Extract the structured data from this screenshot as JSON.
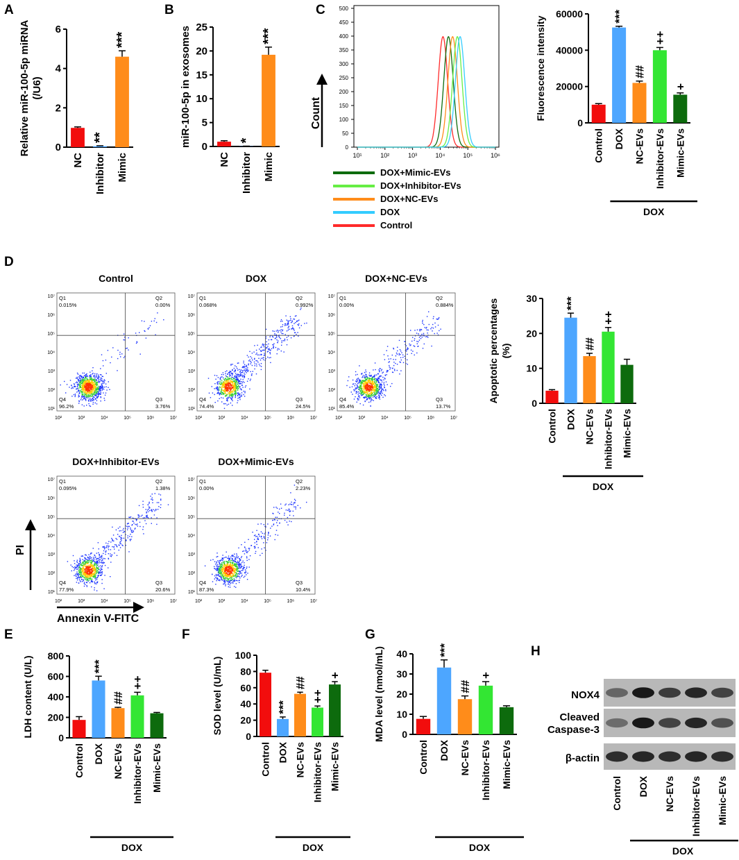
{
  "colors": {
    "red": "#f20d0d",
    "blue": "#4da6ff",
    "orange": "#ff8c1a",
    "green": "#33e633",
    "darkgreen": "#0d6b0d",
    "cyan": "#33ccff",
    "lightgreen": "#66ee44"
  },
  "panel_labels": [
    "A",
    "B",
    "C",
    "D",
    "E",
    "F",
    "G",
    "H"
  ],
  "chart_data": [
    {
      "panel": "A",
      "type": "bar",
      "ylabel": "Relative miR-100-5p miRNA (/U6)",
      "categories": [
        "NC",
        "Inhibitor",
        "Mimic"
      ],
      "values": [
        0.98,
        0.05,
        4.6
      ],
      "errors": [
        0.05,
        0.02,
        0.3
      ],
      "colors": [
        "#f20d0d",
        "#4da6ff",
        "#ff8c1a"
      ],
      "annotations": [
        "",
        "**",
        "***"
      ],
      "ylim": [
        0,
        6
      ],
      "yticks": [
        0,
        2,
        4,
        6
      ]
    },
    {
      "panel": "B",
      "type": "bar",
      "ylabel": "miR-100-5p in exosomes",
      "categories": [
        "NC",
        "Inhibitor",
        "Mimic"
      ],
      "values": [
        1.0,
        0.05,
        19.2
      ],
      "errors": [
        0.2,
        0.02,
        1.6
      ],
      "colors": [
        "#f20d0d",
        "#4da6ff",
        "#ff8c1a"
      ],
      "annotations": [
        "",
        "*",
        "***"
      ],
      "ylim": [
        0,
        25
      ],
      "yticks": [
        0,
        5,
        10,
        15,
        20,
        25
      ]
    },
    {
      "panel": "C-right",
      "type": "bar",
      "ylabel": "Fluorescence intensity",
      "categories": [
        "Control",
        "DOX",
        "NC-EVs",
        "Inhibitor-EVs",
        "Mimic-EVs"
      ],
      "values": [
        10000,
        52500,
        22000,
        40000,
        15500
      ],
      "errors": [
        600,
        700,
        1000,
        1500,
        1000
      ],
      "colors": [
        "#f20d0d",
        "#4da6ff",
        "#ff8c1a",
        "#33e633",
        "#0d6b0d"
      ],
      "annotations": [
        "",
        "***",
        "##",
        "++",
        "+"
      ],
      "ylim": [
        0,
        60000
      ],
      "yticks": [
        0,
        20000,
        40000,
        60000
      ],
      "group_label": "DOX"
    },
    {
      "panel": "D-right",
      "type": "bar",
      "ylabel": "Apoptotic percentages (%)",
      "categories": [
        "Control",
        "DOX",
        "NC-EVs",
        "Inhibitor-EVs",
        "Mimic-EVs"
      ],
      "values": [
        3.6,
        24.5,
        13.5,
        20.5,
        11.0
      ],
      "errors": [
        0.3,
        1.3,
        0.8,
        1.2,
        1.6
      ],
      "colors": [
        "#f20d0d",
        "#4da6ff",
        "#ff8c1a",
        "#33e633",
        "#0d6b0d"
      ],
      "annotations": [
        "",
        "***",
        "##",
        "++",
        ""
      ],
      "ylim": [
        0,
        30
      ],
      "yticks": [
        0,
        10,
        20,
        30
      ],
      "group_label": "DOX"
    },
    {
      "panel": "E",
      "type": "bar",
      "ylabel": "LDH content (U/L)",
      "categories": [
        "Control",
        "DOX",
        "NC-EVs",
        "Inhibitor-EVs",
        "Mimic-EVs"
      ],
      "values": [
        175,
        560,
        290,
        415,
        240
      ],
      "errors": [
        32,
        42,
        8,
        30,
        8
      ],
      "colors": [
        "#f20d0d",
        "#4da6ff",
        "#ff8c1a",
        "#33e633",
        "#0d6b0d"
      ],
      "annotations": [
        "",
        "***",
        "##",
        "++",
        ""
      ],
      "ylim": [
        0,
        800
      ],
      "yticks": [
        0,
        200,
        400,
        600,
        800
      ],
      "group_label": "DOX"
    },
    {
      "panel": "F",
      "type": "bar",
      "ylabel": "SOD level (U/mL)",
      "categories": [
        "Control",
        "DOX",
        "NC-EVs",
        "Inhibitor-EVs",
        "Mimic-EVs"
      ],
      "values": [
        78.5,
        21.5,
        52.5,
        35.5,
        64.0
      ],
      "errors": [
        3.0,
        2.5,
        2.0,
        2.0,
        3.5
      ],
      "colors": [
        "#f20d0d",
        "#4da6ff",
        "#ff8c1a",
        "#33e633",
        "#0d6b0d"
      ],
      "annotations": [
        "",
        "***",
        "##",
        "++",
        "+"
      ],
      "ylim": [
        0,
        100
      ],
      "yticks": [
        0,
        20,
        40,
        60,
        80,
        100
      ],
      "group_label": "DOX"
    },
    {
      "panel": "G",
      "type": "bar",
      "ylabel": "MDA level (nmol/mL)",
      "categories": [
        "Control",
        "DOX",
        "NC-EVs",
        "Inhibitor-EVs",
        "Mimic-EVs"
      ],
      "values": [
        7.7,
        33.2,
        17.5,
        24.2,
        13.5
      ],
      "errors": [
        1.2,
        3.8,
        1.6,
        2.0,
        0.7
      ],
      "colors": [
        "#f20d0d",
        "#4da6ff",
        "#ff8c1a",
        "#33e633",
        "#0d6b0d"
      ],
      "annotations": [
        "",
        "***",
        "##",
        "+",
        ""
      ],
      "ylim": [
        0,
        40
      ],
      "yticks": [
        0,
        10,
        20,
        30,
        40
      ],
      "group_label": "DOX"
    }
  ],
  "histogram": {
    "panel": "C",
    "ylabel": "Count",
    "yticks": [
      0,
      50,
      100,
      150,
      200,
      250,
      300,
      350,
      400,
      450,
      500
    ],
    "xticks": [
      "10¹",
      "10²",
      "10³",
      "10⁴",
      "10⁵",
      "10⁶"
    ],
    "series": [
      {
        "name": "Control",
        "peak_log": 4.1,
        "color": "#ff2a2a"
      },
      {
        "name": "DOX+Mimic-EVs",
        "peak_log": 4.3,
        "color": "#0d6b0d"
      },
      {
        "name": "DOX+NC-EVs",
        "peak_log": 4.45,
        "color": "#ff8c1a"
      },
      {
        "name": "DOX+Inhibitor-EVs",
        "peak_log": 4.62,
        "color": "#66ee44"
      },
      {
        "name": "DOX",
        "peak_log": 4.72,
        "color": "#33ccff"
      }
    ],
    "legend_order": [
      "DOX+Mimic-EVs",
      "DOX+Inhibitor-EVs",
      "DOX+NC-EVs",
      "DOX",
      "Control"
    ]
  },
  "flow": {
    "xlabel": "Annexin V-FITC",
    "ylabel": "PI",
    "xticks": [
      "10²",
      "10³",
      "10⁴",
      "10⁵",
      "10⁶",
      "10⁷"
    ],
    "yticks": [
      "10¹",
      "10²",
      "10³",
      "10⁴",
      "10⁵",
      "10⁶",
      "10⁷"
    ],
    "quad_names": [
      "Q1",
      "Q2",
      "Q3",
      "Q4"
    ],
    "plots": [
      {
        "title": "Control",
        "q1": "0.015%",
        "q2": "0.00%",
        "q3": "3.76%",
        "q4": "96.2%"
      },
      {
        "title": "DOX",
        "q1": "0.068%",
        "q2": "0.992%",
        "q3": "24.5%",
        "q4": "74.4%"
      },
      {
        "title": "DOX+NC-EVs",
        "q1": "0.00%",
        "q2": "0.884%",
        "q3": "13.7%",
        "q4": "85.4%"
      },
      {
        "title": "DOX+Inhibitor-EVs",
        "q1": "0.095%",
        "q2": "1.38%",
        "q3": "20.6%",
        "q4": "77.9%"
      },
      {
        "title": "DOX+Mimic-EVs",
        "q1": "0.00%",
        "q2": "2.23%",
        "q3": "10.4%",
        "q4": "87.3%"
      }
    ]
  },
  "western": {
    "rows": [
      "NOX4",
      "Cleaved Caspase-3",
      "β-actin"
    ],
    "lanes": [
      "Control",
      "DOX",
      "NC-EVs",
      "Inhibitor-EVs",
      "Mimic-EVs"
    ],
    "group_label": "DOX",
    "intensities": [
      [
        0.35,
        0.9,
        0.65,
        0.8,
        0.6
      ],
      [
        0.3,
        0.9,
        0.6,
        0.8,
        0.5
      ],
      [
        0.75,
        0.8,
        0.75,
        0.8,
        0.75
      ]
    ]
  }
}
